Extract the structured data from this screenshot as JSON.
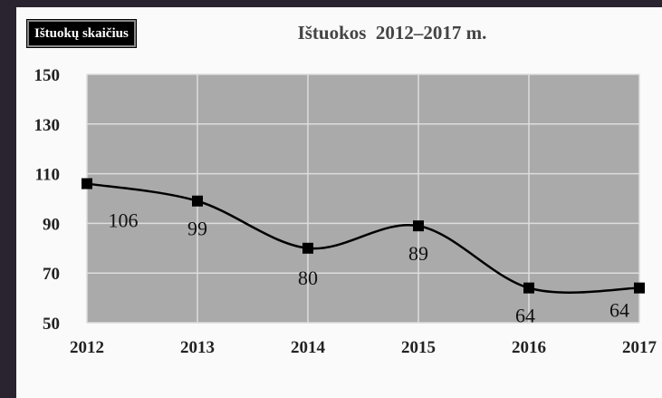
{
  "chart_data": {
    "type": "line",
    "title": "Ištuokos  2012–2017 m.",
    "legend": {
      "label": "Ištuokų skaičius",
      "placement": "top-left"
    },
    "x": [
      "2012",
      "2013",
      "2014",
      "2015",
      "2016",
      "2017"
    ],
    "series": [
      {
        "name": "Ištuokų skaičius",
        "values": [
          106,
          99,
          80,
          89,
          64,
          64
        ],
        "color": "#000000"
      }
    ],
    "ylim": [
      50,
      150
    ],
    "yticks": [
      50,
      70,
      90,
      110,
      130,
      150
    ],
    "grid": true,
    "plot_background": "#aaaaaa",
    "grid_color": "#dddddd",
    "smooth": true,
    "marker": "square"
  }
}
